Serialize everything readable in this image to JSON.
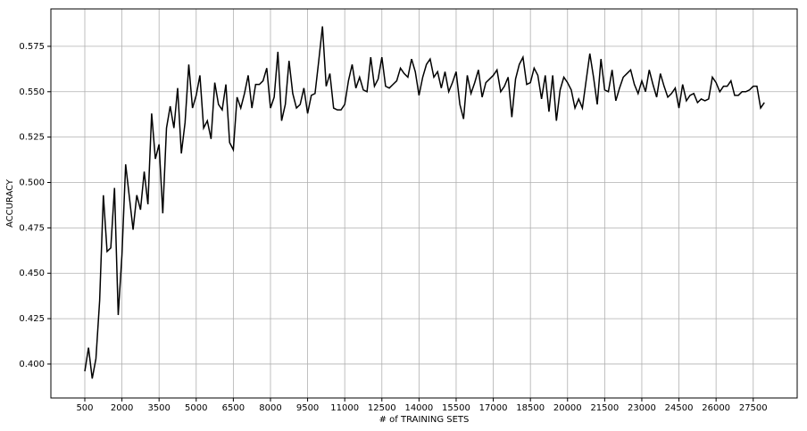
{
  "chart_data": {
    "type": "line",
    "xlabel": "# of TRAINING SETS",
    "ylabel": "ACCURACY",
    "grid": true,
    "xlim": [
      -870,
      29276
    ],
    "ylim": [
      0.3813,
      0.5956
    ],
    "xticks": [
      500,
      2000,
      3500,
      5000,
      6500,
      8000,
      9500,
      11000,
      12500,
      14000,
      15500,
      17000,
      18500,
      20000,
      21500,
      23000,
      24500,
      26000,
      27500
    ],
    "yticks": [
      {
        "value": 0.4,
        "label": "0.400"
      },
      {
        "value": 0.425,
        "label": "0.425"
      },
      {
        "value": 0.45,
        "label": "0.450"
      },
      {
        "value": 0.475,
        "label": "0.475"
      },
      {
        "value": 0.5,
        "label": "0.500"
      },
      {
        "value": 0.525,
        "label": "0.525"
      },
      {
        "value": 0.55,
        "label": "0.550"
      },
      {
        "value": 0.575,
        "label": "0.575"
      }
    ],
    "x": [
      500,
      650,
      800,
      950,
      1100,
      1250,
      1400,
      1550,
      1700,
      1850,
      2000,
      2150,
      2300,
      2450,
      2600,
      2750,
      2900,
      3050,
      3200,
      3350,
      3500,
      3650,
      3800,
      3950,
      4100,
      4250,
      4400,
      4550,
      4700,
      4850,
      5000,
      5150,
      5300,
      5450,
      5600,
      5750,
      5900,
      6050,
      6200,
      6350,
      6500,
      6650,
      6800,
      6950,
      7100,
      7250,
      7400,
      7550,
      7700,
      7850,
      8000,
      8150,
      8300,
      8450,
      8600,
      8750,
      8900,
      9050,
      9200,
      9350,
      9500,
      9650,
      9800,
      9950,
      10100,
      10250,
      10400,
      10550,
      10700,
      10850,
      11000,
      11150,
      11300,
      11450,
      11600,
      11750,
      11900,
      12050,
      12200,
      12350,
      12500,
      12650,
      12800,
      12950,
      13100,
      13250,
      13400,
      13550,
      13700,
      13850,
      14000,
      14150,
      14300,
      14450,
      14600,
      14750,
      14900,
      15050,
      15200,
      15350,
      15500,
      15650,
      15800,
      15950,
      16100,
      16250,
      16400,
      16550,
      16700,
      16850,
      17000,
      17150,
      17300,
      17450,
      17600,
      17750,
      17900,
      18050,
      18200,
      18350,
      18500,
      18650,
      18800,
      18950,
      19100,
      19250,
      19400,
      19550,
      19700,
      19850,
      20000,
      20150,
      20300,
      20450,
      20600,
      20750,
      20900,
      21050,
      21200,
      21350,
      21500,
      21650,
      21800,
      21950,
      22100,
      22250,
      22400,
      22550,
      22700,
      22850,
      23000,
      23150,
      23300,
      23450,
      23600,
      23750,
      23900,
      24050,
      24200,
      24350,
      24500,
      24650,
      24800,
      24950,
      25100,
      25250,
      25400,
      25550,
      25700,
      25850,
      26000,
      26150,
      26300,
      26450,
      26600,
      26750,
      26900,
      27050,
      27200,
      27350,
      27500,
      27650,
      27800,
      27950
    ],
    "series": [
      {
        "color": "#000000",
        "values": [
          0.396,
          0.409,
          0.392,
          0.403,
          0.435,
          0.493,
          0.462,
          0.464,
          0.497,
          0.427,
          0.46,
          0.51,
          0.492,
          0.474,
          0.493,
          0.485,
          0.506,
          0.488,
          0.538,
          0.513,
          0.521,
          0.483,
          0.53,
          0.542,
          0.53,
          0.552,
          0.516,
          0.533,
          0.565,
          0.541,
          0.548,
          0.559,
          0.53,
          0.534,
          0.524,
          0.555,
          0.543,
          0.54,
          0.554,
          0.522,
          0.518,
          0.547,
          0.541,
          0.549,
          0.559,
          0.541,
          0.554,
          0.554,
          0.556,
          0.563,
          0.541,
          0.547,
          0.572,
          0.534,
          0.543,
          0.567,
          0.549,
          0.541,
          0.543,
          0.552,
          0.538,
          0.548,
          0.549,
          0.567,
          0.586,
          0.553,
          0.56,
          0.541,
          0.54,
          0.54,
          0.543,
          0.556,
          0.565,
          0.552,
          0.558,
          0.551,
          0.55,
          0.569,
          0.553,
          0.557,
          0.569,
          0.553,
          0.552,
          0.554,
          0.556,
          0.563,
          0.56,
          0.558,
          0.568,
          0.561,
          0.548,
          0.558,
          0.565,
          0.568,
          0.558,
          0.561,
          0.552,
          0.561,
          0.55,
          0.555,
          0.561,
          0.543,
          0.535,
          0.559,
          0.549,
          0.555,
          0.562,
          0.547,
          0.555,
          0.557,
          0.559,
          0.562,
          0.55,
          0.553,
          0.558,
          0.536,
          0.557,
          0.565,
          0.569,
          0.554,
          0.555,
          0.563,
          0.559,
          0.546,
          0.559,
          0.539,
          0.559,
          0.534,
          0.551,
          0.558,
          0.555,
          0.551,
          0.541,
          0.546,
          0.541,
          0.556,
          0.571,
          0.558,
          0.543,
          0.568,
          0.551,
          0.55,
          0.562,
          0.545,
          0.552,
          0.558,
          0.56,
          0.562,
          0.554,
          0.549,
          0.556,
          0.55,
          0.562,
          0.554,
          0.547,
          0.56,
          0.553,
          0.547,
          0.549,
          0.552,
          0.541,
          0.554,
          0.545,
          0.548,
          0.549,
          0.544,
          0.546,
          0.545,
          0.546,
          0.558,
          0.555,
          0.55,
          0.553,
          0.553,
          0.556,
          0.548,
          0.548,
          0.55,
          0.55,
          0.551,
          0.553,
          0.553,
          0.541,
          0.544
        ]
      }
    ]
  }
}
